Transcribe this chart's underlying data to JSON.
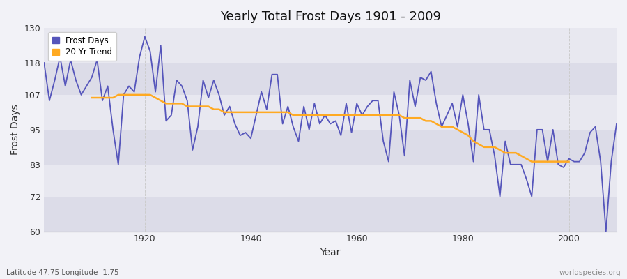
{
  "title": "Yearly Total Frost Days 1901 - 2009",
  "xlabel": "Year",
  "ylabel": "Frost Days",
  "subtitle": "Latitude 47.75 Longitude -1.75",
  "watermark": "worldspecies.org",
  "fig_bg_color": "#f2f2f7",
  "plot_bg_color": "#e8e8f0",
  "band_color_dark": "#dcdce8",
  "band_color_light": "#e8e8f0",
  "blue_color": "#5555bb",
  "orange_color": "#ffaa22",
  "ylim": [
    60,
    130
  ],
  "yticks": [
    60,
    72,
    83,
    95,
    107,
    118,
    130
  ],
  "xlim": [
    1901,
    2009
  ],
  "years": [
    1901,
    1902,
    1903,
    1904,
    1905,
    1906,
    1907,
    1908,
    1909,
    1910,
    1911,
    1912,
    1913,
    1914,
    1915,
    1916,
    1917,
    1918,
    1919,
    1920,
    1921,
    1922,
    1923,
    1924,
    1925,
    1926,
    1927,
    1928,
    1929,
    1930,
    1931,
    1932,
    1933,
    1934,
    1935,
    1936,
    1937,
    1938,
    1939,
    1940,
    1941,
    1942,
    1943,
    1944,
    1945,
    1946,
    1947,
    1948,
    1949,
    1950,
    1951,
    1952,
    1953,
    1954,
    1955,
    1956,
    1957,
    1958,
    1959,
    1960,
    1961,
    1962,
    1963,
    1964,
    1965,
    1966,
    1967,
    1968,
    1969,
    1970,
    1971,
    1972,
    1973,
    1974,
    1975,
    1976,
    1977,
    1978,
    1979,
    1980,
    1981,
    1982,
    1983,
    1984,
    1985,
    1986,
    1987,
    1988,
    1989,
    1990,
    1991,
    1992,
    1993,
    1994,
    1995,
    1996,
    1997,
    1998,
    1999,
    2000,
    2001,
    2002,
    2003,
    2004,
    2005,
    2006,
    2007,
    2008,
    2009
  ],
  "frost_days": [
    118,
    105,
    112,
    120,
    110,
    119,
    112,
    107,
    110,
    113,
    119,
    105,
    110,
    95,
    83,
    107,
    110,
    108,
    120,
    127,
    122,
    108,
    124,
    98,
    100,
    112,
    110,
    105,
    88,
    96,
    112,
    106,
    112,
    107,
    100,
    103,
    97,
    93,
    94,
    92,
    100,
    108,
    102,
    114,
    114,
    97,
    103,
    96,
    91,
    103,
    95,
    104,
    97,
    100,
    97,
    98,
    93,
    104,
    94,
    104,
    100,
    103,
    105,
    105,
    91,
    84,
    108,
    100,
    86,
    112,
    103,
    113,
    112,
    115,
    104,
    96,
    100,
    104,
    96,
    107,
    97,
    84,
    107,
    95,
    95,
    86,
    72,
    91,
    83,
    83,
    83,
    78,
    72,
    95,
    95,
    84,
    95,
    83,
    82,
    85,
    84,
    84,
    87,
    94,
    96,
    84,
    60,
    84,
    97
  ],
  "trend_years": [
    1910,
    1911,
    1912,
    1913,
    1914,
    1915,
    1916,
    1917,
    1918,
    1919,
    1920,
    1921,
    1922,
    1923,
    1924,
    1925,
    1926,
    1927,
    1928,
    1929,
    1930,
    1931,
    1932,
    1933,
    1934,
    1935,
    1936,
    1937,
    1938,
    1939,
    1940,
    1941,
    1942,
    1943,
    1944,
    1945,
    1946,
    1947,
    1948,
    1949,
    1950,
    1951,
    1952,
    1953,
    1954,
    1955,
    1956,
    1957,
    1958,
    1959,
    1960,
    1961,
    1962,
    1963,
    1964,
    1965,
    1966,
    1967,
    1968,
    1969,
    1970,
    1971,
    1972,
    1973,
    1974,
    1975,
    1976,
    1977,
    1978,
    1979,
    1980,
    1981,
    1982,
    1983,
    1984,
    1985,
    1986,
    1987,
    1988,
    1989,
    1990,
    1991,
    1992,
    1993,
    1994,
    1995,
    1996,
    1997,
    1998,
    1999,
    2000
  ],
  "trend_values": [
    106,
    106,
    106,
    106,
    106,
    107,
    107,
    107,
    107,
    107,
    107,
    107,
    106,
    105,
    104,
    104,
    104,
    104,
    103,
    103,
    103,
    103,
    103,
    102,
    102,
    101,
    101,
    101,
    101,
    101,
    101,
    101,
    101,
    101,
    101,
    101,
    101,
    101,
    100,
    100,
    100,
    100,
    100,
    100,
    100,
    100,
    100,
    100,
    100,
    100,
    100,
    100,
    100,
    100,
    100,
    100,
    100,
    100,
    100,
    99,
    99,
    99,
    99,
    98,
    98,
    97,
    96,
    96,
    96,
    95,
    94,
    93,
    91,
    90,
    89,
    89,
    89,
    88,
    87,
    87,
    87,
    86,
    85,
    84,
    84,
    84,
    84,
    84,
    84,
    84,
    84
  ]
}
